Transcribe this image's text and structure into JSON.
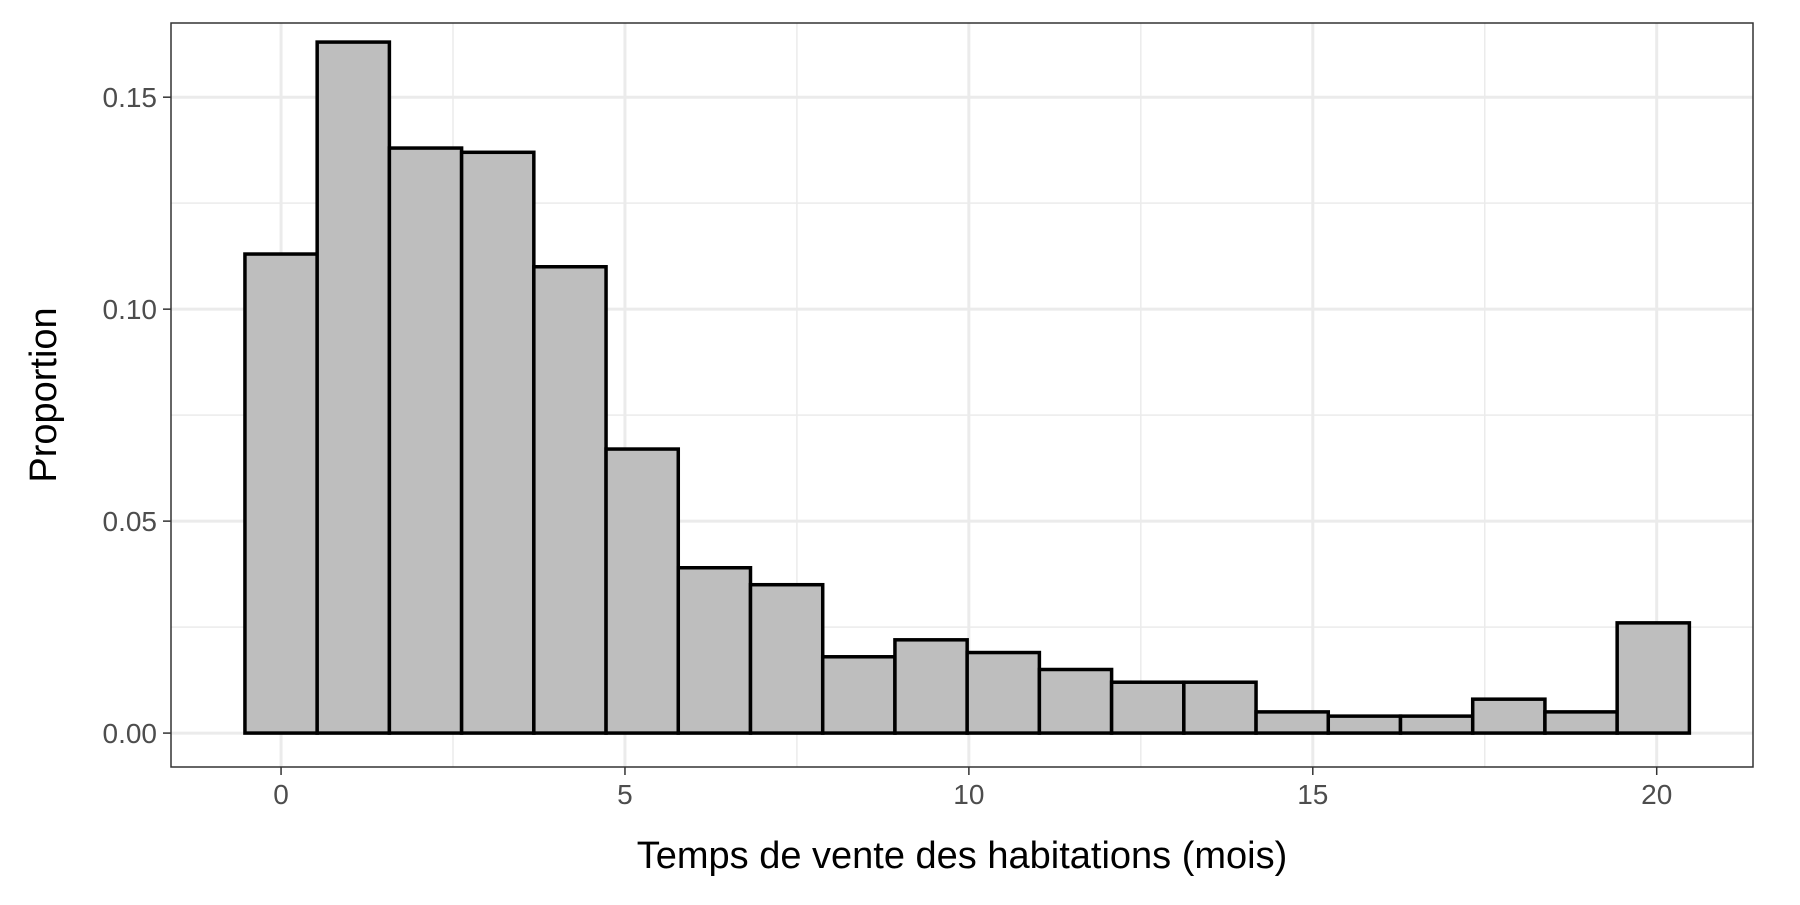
{
  "chart_data": {
    "type": "bar",
    "title": "",
    "xlabel": "Temps de vente des habitations (mois)",
    "ylabel": "Proportion",
    "x": [
      0,
      1.05,
      2.1,
      3.15,
      4.2,
      5.25,
      6.3,
      7.35,
      8.4,
      9.45,
      10.5,
      11.55,
      12.6,
      13.65,
      14.7,
      15.75,
      16.8,
      17.85,
      18.9,
      19.95
    ],
    "bin_width": 1.05,
    "values": [
      0.113,
      0.163,
      0.138,
      0.137,
      0.11,
      0.067,
      0.039,
      0.035,
      0.018,
      0.022,
      0.019,
      0.015,
      0.012,
      0.012,
      0.005,
      0.004,
      0.004,
      0.008,
      0.005,
      0.026
    ],
    "xlim": [
      -1.6,
      21.4
    ],
    "ylim": [
      -0.008,
      0.1675
    ],
    "x_ticks": [
      0,
      5,
      10,
      15,
      20
    ],
    "x_tick_labels": [
      "0",
      "5",
      "10",
      "15",
      "20"
    ],
    "y_ticks": [
      0,
      0.05,
      0.1,
      0.15
    ],
    "y_tick_labels": [
      "0.00",
      "0.05",
      "0.10",
      "0.15"
    ],
    "grid": true,
    "legend": "none",
    "colors": {
      "bar_fill": "#bebebe",
      "bar_stroke": "#000000",
      "grid": "#ebebeb",
      "tick_text": "#4d4d4d",
      "panel_border": "#333333"
    }
  }
}
